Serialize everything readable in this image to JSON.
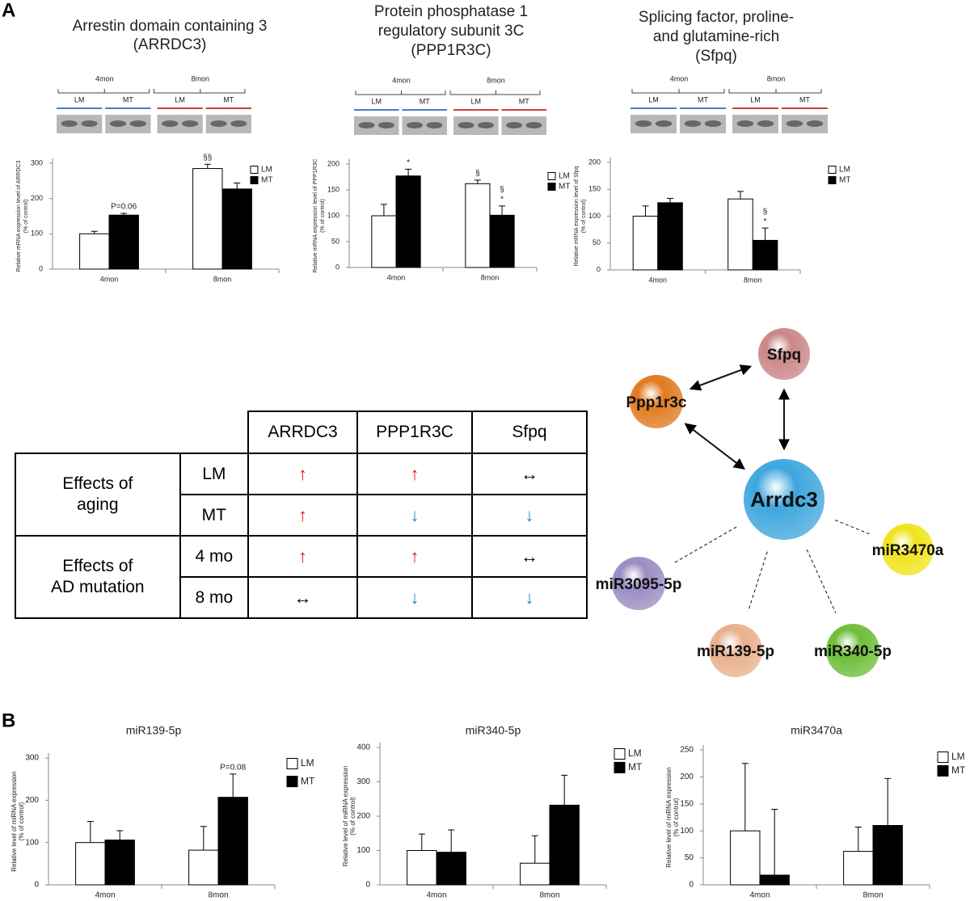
{
  "panel_labels": [
    "A",
    "B"
  ],
  "chart_data": [
    {
      "type": "bar",
      "title": [
        "Arrestin domain containing 3",
        "(ARRDC3)"
      ],
      "ylabel": [
        "Relative mRNA expression level of ARRDC3",
        "(% of control)"
      ],
      "blot_groups": [
        "4mon",
        "8mon"
      ],
      "blot_lanes": [
        "LM",
        "MT",
        "LM",
        "MT"
      ],
      "categories": [
        "4mon",
        "8mon"
      ],
      "ylim": [
        0,
        300
      ],
      "yticks": [
        0,
        100,
        200,
        300
      ],
      "series": [
        {
          "name": "LM",
          "color": "#ffffff",
          "values": [
            100,
            285
          ],
          "errors": [
            7,
            12
          ],
          "annotations": [
            null,
            [
              "§§"
            ]
          ]
        },
        {
          "name": "MT",
          "color": "#000000",
          "values": [
            153,
            227
          ],
          "errors": [
            5,
            17
          ],
          "annotations": [
            [
              "P=0.06"
            ],
            null
          ]
        }
      ]
    },
    {
      "type": "bar",
      "title": [
        "Protein phosphatase 1",
        "regulatory subunit 3C",
        "(PPP1R3C)"
      ],
      "ylabel": [
        "Relative mRNA expression level of PPP1R3C",
        "(% of control)"
      ],
      "blot_groups": [
        "4mon",
        "8mon"
      ],
      "blot_lanes": [
        "LM",
        "MT",
        "LM",
        "MT"
      ],
      "categories": [
        "4mon",
        "8mon"
      ],
      "ylim": [
        0,
        200
      ],
      "yticks": [
        0,
        50,
        100,
        150,
        200
      ],
      "series": [
        {
          "name": "LM",
          "color": "#ffffff",
          "values": [
            100,
            162
          ],
          "errors": [
            22,
            7
          ],
          "annotations": [
            null,
            [
              "§"
            ]
          ]
        },
        {
          "name": "MT",
          "color": "#000000",
          "values": [
            177,
            101
          ],
          "errors": [
            13,
            18
          ],
          "annotations": [
            [
              "*"
            ],
            [
              "§",
              "*"
            ]
          ]
        }
      ]
    },
    {
      "type": "bar",
      "title": [
        "Splicing factor, proline-",
        "and glutamine-rich",
        "(Sfpq)"
      ],
      "ylabel": [
        "Relative mRNA expression level of Sfpq",
        "(% of control)"
      ],
      "blot_groups": [
        "4mon",
        "8mon"
      ],
      "blot_lanes": [
        "LM",
        "MT",
        "LM",
        "MT"
      ],
      "categories": [
        "4mon",
        "8mon"
      ],
      "ylim": [
        0,
        200
      ],
      "yticks": [
        0,
        50,
        100,
        150,
        200
      ],
      "series": [
        {
          "name": "LM",
          "color": "#ffffff",
          "values": [
            100,
            132
          ],
          "errors": [
            19,
            14
          ],
          "annotations": [
            null,
            null
          ]
        },
        {
          "name": "MT",
          "color": "#000000",
          "values": [
            125,
            55
          ],
          "errors": [
            8,
            23
          ],
          "annotations": [
            null,
            [
              "§",
              "*"
            ]
          ]
        }
      ]
    },
    {
      "type": "bar",
      "title": [
        "miR139-5p"
      ],
      "ylabel": [
        "Relative level of miRNA expression",
        "(% of control)"
      ],
      "categories": [
        "4mon",
        "8mon"
      ],
      "ylim": [
        0,
        300
      ],
      "yticks": [
        0,
        100,
        200,
        300
      ],
      "series": [
        {
          "name": "LM",
          "color": "#ffffff",
          "values": [
            100,
            82
          ],
          "errors": [
            50,
            56
          ],
          "annotations": [
            null,
            null
          ]
        },
        {
          "name": "MT",
          "color": "#000000",
          "values": [
            106,
            207
          ],
          "errors": [
            22,
            55
          ],
          "annotations": [
            null,
            [
              "P=0.08"
            ]
          ]
        }
      ]
    },
    {
      "type": "bar",
      "title": [
        "miR340-5p"
      ],
      "ylabel": [
        "Relative level of miRNA expression",
        "(% of control)"
      ],
      "categories": [
        "4mon",
        "8mon"
      ],
      "ylim": [
        0,
        400
      ],
      "yticks": [
        0,
        100,
        200,
        300,
        400
      ],
      "series": [
        {
          "name": "LM",
          "color": "#ffffff",
          "values": [
            100,
            63
          ],
          "errors": [
            48,
            80
          ],
          "annotations": [
            null,
            null
          ]
        },
        {
          "name": "MT",
          "color": "#000000",
          "values": [
            95,
            232
          ],
          "errors": [
            65,
            87
          ],
          "annotations": [
            null,
            null
          ]
        }
      ]
    },
    {
      "type": "bar",
      "title": [
        "miR3470a"
      ],
      "ylabel": [
        "Relative level of miRNA expression",
        "(% of control)"
      ],
      "categories": [
        "4mon",
        "8mon"
      ],
      "ylim": [
        0,
        250
      ],
      "yticks": [
        0,
        50,
        100,
        150,
        200,
        250
      ],
      "series": [
        {
          "name": "LM",
          "color": "#ffffff",
          "values": [
            100,
            62
          ],
          "errors": [
            125,
            45
          ],
          "annotations": [
            null,
            null
          ]
        },
        {
          "name": "MT",
          "color": "#000000",
          "values": [
            18,
            110
          ],
          "errors": [
            122,
            87
          ],
          "annotations": [
            null,
            null
          ]
        }
      ]
    }
  ],
  "table": {
    "columns": [
      "ARRDC3",
      "PPP1R3C",
      "Sfpq"
    ],
    "groups": [
      {
        "label": [
          "Effects of",
          "aging"
        ],
        "rows": [
          {
            "label": "LM",
            "cells": [
              {
                "text": "↑",
                "color": "#e8141c"
              },
              {
                "text": "↑",
                "color": "#e8141c"
              },
              {
                "text": "↔",
                "color": "#000000"
              }
            ]
          },
          {
            "label": "MT",
            "cells": [
              {
                "text": "↑",
                "color": "#e8141c"
              },
              {
                "text": "↓",
                "color": "#1a86c8"
              },
              {
                "text": "↓",
                "color": "#1a86c8"
              }
            ]
          }
        ]
      },
      {
        "label": [
          "Effects of",
          "AD mutation"
        ],
        "rows": [
          {
            "label": "4 mo",
            "cells": [
              {
                "text": "↑",
                "color": "#e8141c"
              },
              {
                "text": "↑",
                "color": "#e8141c"
              },
              {
                "text": "↔",
                "color": "#000000"
              }
            ]
          },
          {
            "label": "8 mo",
            "cells": [
              {
                "text": "↔",
                "color": "#000000"
              },
              {
                "text": "↓",
                "color": "#1a86c8"
              },
              {
                "text": "↓",
                "color": "#1a86c8"
              }
            ]
          }
        ]
      }
    ]
  },
  "network": {
    "nodes": [
      {
        "label": "Sfpq",
        "color": "#c98686"
      },
      {
        "label": "Ppp1r3c",
        "color": "#e07a1e"
      },
      {
        "label": "Arrdc3",
        "color": "#3ea6de"
      },
      {
        "label": "miR3470a",
        "color": "#f0e41c"
      },
      {
        "label": "miR3095-5p",
        "color": "#9a8cc2"
      },
      {
        "label": "miR139-5p",
        "color": "#e8b08c"
      },
      {
        "label": "miR340-5p",
        "color": "#6dbd38"
      }
    ]
  }
}
